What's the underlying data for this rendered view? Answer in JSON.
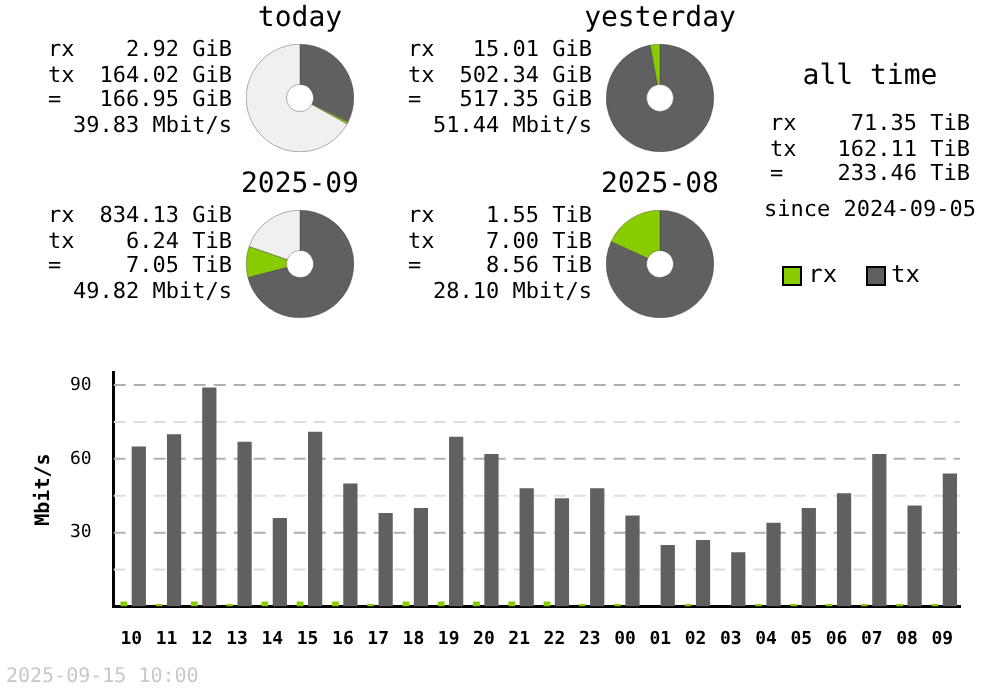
{
  "chart_data": [
    {
      "type": "donut",
      "title": "today",
      "categories": [
        null,
        null,
        null
      ],
      "values": [
        32.4,
        0.6,
        67
      ],
      "colors": [
        "#606060",
        "#88cc00",
        "#f0f0f0"
      ],
      "annotations": [
        "rx 2.92 GiB",
        "tx 164.02 GiB",
        "= 166.95 GiB",
        "39.83 Mbit/s"
      ]
    },
    {
      "type": "donut",
      "title": "yesterday",
      "categories": [
        null,
        null
      ],
      "values": [
        97.1,
        2.9
      ],
      "colors": [
        "#606060",
        "#88cc00"
      ],
      "annotations": [
        "rx 15.01 GiB",
        "tx 502.34 GiB",
        "= 517.35 GiB",
        "51.44 Mbit/s"
      ]
    },
    {
      "type": "other",
      "title": "all time",
      "annotations": [
        "rx 71.35 TiB",
        "tx 162.11 TiB",
        "= 233.46 TiB",
        "since 2024-09-05"
      ]
    },
    {
      "type": "donut",
      "title": "2025-09",
      "categories": [
        null,
        null,
        null
      ],
      "values": [
        71,
        9.3,
        19.7
      ],
      "colors": [
        "#606060",
        "#88cc00",
        "#f0f0f0"
      ],
      "annotations": [
        "rx 834.13 GiB",
        "tx 6.24 TiB",
        "= 7.05 TiB",
        "49.82 Mbit/s"
      ]
    },
    {
      "type": "donut",
      "title": "2025-08",
      "categories": [
        null,
        null
      ],
      "values": [
        81.9,
        18.1
      ],
      "colors": [
        "#606060",
        "#88cc00"
      ],
      "annotations": [
        "rx 1.55 TiB",
        "tx 7.00 TiB",
        "= 8.56 TiB",
        "28.10 Mbit/s"
      ]
    },
    {
      "type": "bar",
      "ylabel": "Mbit/s",
      "categories": [
        "10",
        "11",
        "12",
        "13",
        "14",
        "15",
        "16",
        "17",
        "18",
        "19",
        "20",
        "21",
        "22",
        "23",
        "00",
        "01",
        "02",
        "03",
        "04",
        "05",
        "06",
        "07",
        "08",
        "09"
      ],
      "series": [
        {
          "name": "rx",
          "color": "#88cc00",
          "values": [
            2,
            1,
            2,
            1,
            2,
            2,
            2,
            1,
            2,
            2,
            2,
            2,
            2,
            1,
            1,
            0,
            1,
            0,
            1,
            1,
            1,
            1,
            1,
            1
          ]
        },
        {
          "name": "tx",
          "color": "#606060",
          "values": [
            65,
            70,
            89,
            67,
            36,
            71,
            50,
            38,
            40,
            69,
            62,
            48,
            44,
            48,
            37,
            25,
            27,
            22,
            34,
            40,
            46,
            62,
            41,
            54
          ]
        }
      ],
      "ylim": [
        0,
        95
      ],
      "yticks": [
        {
          "value": 0,
          "label": null
        },
        {
          "value": 15,
          "label": null
        },
        30,
        {
          "value": 45,
          "label": null
        },
        60,
        {
          "value": 75,
          "label": null
        },
        90
      ],
      "grid": "y",
      "legend": "top right",
      "annotations": [
        "2025-09-15 10:00"
      ]
    }
  ]
}
